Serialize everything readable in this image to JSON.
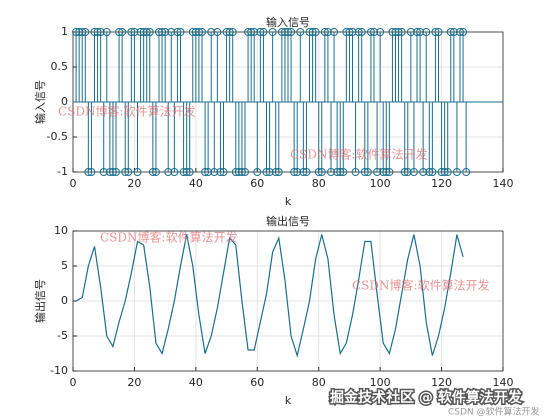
{
  "chart_data": [
    {
      "type": "stem",
      "title": "输入信号",
      "xlabel": "k",
      "ylabel": "输入信号",
      "color": "#1a6f8f",
      "grid": true,
      "xlim": [
        0,
        140
      ],
      "xticks": [
        0,
        20,
        40,
        60,
        80,
        100,
        120,
        140
      ],
      "ylim": [
        -1,
        1
      ],
      "yticks": [
        -1,
        -0.5,
        0,
        0.5,
        1
      ],
      "x": [
        1,
        2,
        3,
        4,
        5,
        6,
        7,
        8,
        9,
        10,
        11,
        12,
        13,
        14,
        15,
        16,
        17,
        18,
        19,
        20,
        21,
        22,
        23,
        24,
        25,
        26,
        27,
        28,
        29,
        30,
        31,
        32,
        33,
        34,
        35,
        36,
        37,
        38,
        39,
        40,
        41,
        42,
        43,
        44,
        45,
        46,
        47,
        48,
        49,
        50,
        51,
        52,
        53,
        54,
        55,
        56,
        57,
        58,
        59,
        60,
        61,
        62,
        63,
        64,
        65,
        66,
        67,
        68,
        69,
        70,
        71,
        72,
        73,
        74,
        75,
        76,
        77,
        78,
        79,
        80,
        81,
        82,
        83,
        84,
        85,
        86,
        87,
        88,
        89,
        90,
        91,
        92,
        93,
        94,
        95,
        96,
        97,
        98,
        99,
        100,
        101,
        102,
        103,
        104,
        105,
        106,
        107,
        108,
        109,
        110,
        111,
        112,
        113,
        114,
        115,
        116,
        117,
        118,
        119,
        120,
        121,
        122,
        123,
        124,
        125,
        126,
        127,
        128
      ],
      "values": [
        1,
        1,
        1,
        1,
        -1,
        -1,
        1,
        1,
        1,
        -1,
        1,
        -1,
        -1,
        -1,
        1,
        1,
        -1,
        -1,
        1,
        1,
        -1,
        1,
        1,
        1,
        1,
        -1,
        -1,
        1,
        1,
        1,
        -1,
        1,
        -1,
        1,
        1,
        -1,
        -1,
        -1,
        1,
        1,
        1,
        1,
        -1,
        -1,
        1,
        -1,
        1,
        -1,
        -1,
        1,
        1,
        1,
        -1,
        -1,
        -1,
        -1,
        1,
        1,
        1,
        -1,
        1,
        1,
        -1,
        -1,
        1,
        -1,
        -1,
        1,
        1,
        1,
        1,
        -1,
        -1,
        1,
        -1,
        -1,
        1,
        1,
        1,
        -1,
        -1,
        1,
        1,
        -1,
        1,
        -1,
        -1,
        -1,
        1,
        1,
        1,
        -1,
        1,
        1,
        -1,
        -1,
        1,
        1,
        -1,
        1,
        -1,
        -1,
        -1,
        1,
        1,
        1,
        1,
        -1,
        -1,
        1,
        -1,
        1,
        1,
        -1,
        1,
        -1,
        -1,
        1,
        1,
        -1,
        -1,
        -1,
        1,
        1,
        -1,
        1,
        1,
        -1
      ]
    },
    {
      "type": "line",
      "title": "输出信号",
      "xlabel": "k",
      "ylabel": "输出信号",
      "color": "#1a6f8f",
      "grid": true,
      "xlim": [
        0,
        140
      ],
      "xticks": [
        0,
        20,
        40,
        60,
        80,
        100,
        120,
        140
      ],
      "ylim": [
        -10,
        10
      ],
      "yticks": [
        -10,
        -5,
        0,
        5,
        10
      ],
      "x": [
        1,
        3,
        5,
        7,
        9,
        11,
        13,
        15,
        17,
        19,
        21,
        23,
        25,
        27,
        29,
        31,
        33,
        35,
        37,
        39,
        41,
        43,
        45,
        47,
        49,
        51,
        53,
        55,
        57,
        59,
        61,
        63,
        65,
        67,
        69,
        71,
        73,
        75,
        77,
        79,
        81,
        83,
        85,
        87,
        89,
        91,
        93,
        95,
        97,
        99,
        101,
        103,
        105,
        107,
        109,
        111,
        113,
        115,
        117,
        119,
        121,
        123,
        125,
        127
      ],
      "values": [
        0,
        0.5,
        5,
        7.8,
        2,
        -5,
        -6.5,
        -3,
        0,
        4,
        8.5,
        8,
        2,
        -6,
        -7.5,
        -4,
        0,
        5,
        9.5,
        5,
        -2,
        -7.5,
        -5,
        -1,
        4,
        9,
        8,
        0,
        -7,
        -7,
        -3,
        1,
        7,
        9,
        3,
        -5,
        -7.8,
        -4,
        0,
        6,
        9.5,
        6,
        -2,
        -7.5,
        -6,
        -2,
        3,
        8.5,
        8.5,
        1,
        -6,
        -7.5,
        -4,
        1,
        6,
        9.5,
        5,
        -3,
        -7.8,
        -5,
        -1,
        4,
        9.5,
        6.3
      ]
    }
  ],
  "watermarks": [
    "CSDN博客:软件算法开发",
    "CSDN博客:软件算法开发",
    "CSDN博客:软件算法开发",
    "CSDN博客:软件算法开发",
    "掘金技术社区 @ 软件算法开发",
    "CSDN @软件算法开发"
  ]
}
